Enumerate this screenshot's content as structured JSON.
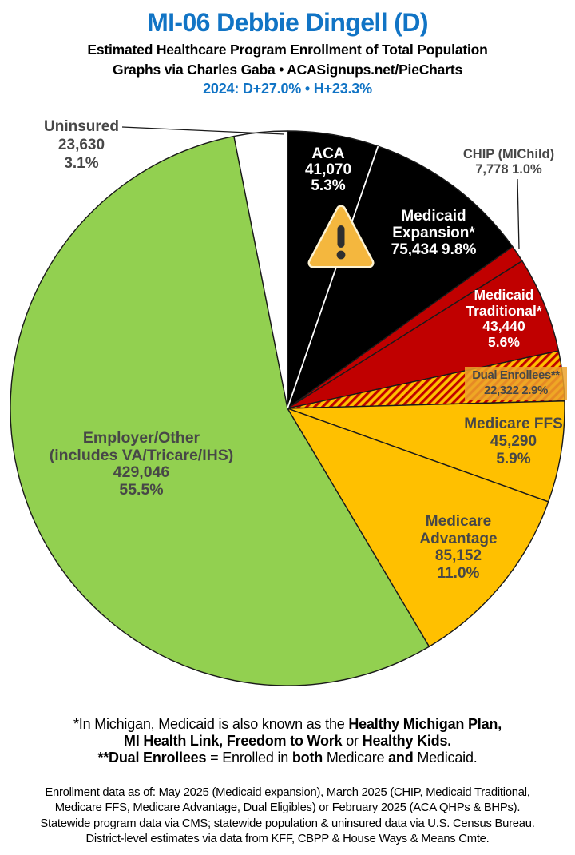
{
  "header": {
    "title": "MI-06 Debbie Dingell (D)",
    "subtitle": "Estimated Healthcare Program Enrollment of Total Population",
    "credit": "Graphs via Charles Gaba   •   ACASignups.net/PieCharts",
    "politics": "2024: D+27.0%  •  H+23.3%"
  },
  "colors": {
    "title_blue": "#1174c5",
    "label_gray": "#474747",
    "pie_black": "#000000",
    "pie_red": "#c00000",
    "pie_gold": "#ffc000",
    "pie_green": "#92d050",
    "pie_white": "#ffffff",
    "slice_stroke": "#1a1a1a",
    "dual_box": "rgba(236,162,44,0.85)",
    "warning_fill": "#f4b73e",
    "warning_halo": "#fdf3d2",
    "warning_glyph": "#2f2f2f"
  },
  "chart_data": {
    "type": "pie",
    "title": "Estimated Healthcare Program Enrollment of Total Population",
    "start_angle_deg": 0,
    "direction": "clockwise",
    "total_pct": 100.1,
    "legend_position": "labels-on-slices",
    "slices": [
      {
        "id": "aca",
        "label": "ACA",
        "enrollment": "41,070",
        "pct": 5.3,
        "fill": "#000000"
      },
      {
        "id": "medicaid-expansion",
        "label": "Medicaid Expansion*",
        "enrollment": "75,434",
        "pct": 9.8,
        "fill": "#000000"
      },
      {
        "id": "chip",
        "label": "CHIP (MIChild)",
        "enrollment": "7,778",
        "pct": 1.0,
        "fill": "#c00000"
      },
      {
        "id": "medicaid-traditional",
        "label": "Medicaid Traditional*",
        "enrollment": "43,440",
        "pct": 5.6,
        "fill": "#c00000"
      },
      {
        "id": "dual-enrollees",
        "label": "Dual Enrollees**",
        "enrollment": "22,322",
        "pct": 2.9,
        "fill": "hatch"
      },
      {
        "id": "medicare-ffs",
        "label": "Medicare FFS",
        "enrollment": "45,290",
        "pct": 5.9,
        "fill": "#ffc000"
      },
      {
        "id": "medicare-advantage",
        "label": "Medicare Advantage",
        "enrollment": "85,152",
        "pct": 11.0,
        "fill": "#ffc000"
      },
      {
        "id": "employer-other",
        "label": "Employer/Other (includes VA/Tricare/IHS)",
        "enrollment": "429,046",
        "pct": 55.5,
        "fill": "#92d050"
      },
      {
        "id": "uninsured",
        "label": "Uninsured",
        "enrollment": "23,630",
        "pct": 3.1,
        "fill": "#ffffff"
      }
    ],
    "white_divider_after_slice": "aca"
  },
  "slice_labels": {
    "uninsured": [
      "Uninsured",
      "23,630",
      "3.1%"
    ],
    "aca": [
      "ACA",
      "41,070",
      "5.3%"
    ],
    "expansion": [
      "Medicaid",
      "Expansion*",
      "75,434 9.8%"
    ],
    "chip": [
      "CHIP (MIChild)",
      "7,778 1.0%"
    ],
    "traditional": [
      "Medicaid",
      "Traditional*",
      "43,440",
      "5.6%"
    ],
    "dual": [
      "Dual Enrollees**",
      "22,322 2.9%"
    ],
    "ffs": [
      "Medicare FFS",
      "45,290",
      "5.9%"
    ],
    "advantage": [
      "Medicare",
      "Advantage",
      "85,152",
      "11.0%"
    ],
    "employer": [
      "Employer/Other",
      "(includes VA/Tricare/IHS)",
      "429,046",
      "55.5%"
    ]
  },
  "footnotes": {
    "note1_lines": [
      [
        {
          "t": "*In Michigan, Medicaid is also known as the ",
          "b": false
        },
        {
          "t": "Healthy Michigan Plan,",
          "b": true
        }
      ],
      [
        {
          "t": "MI Health Link, Freedom to Work",
          "b": true
        },
        {
          "t": " or ",
          "b": false
        },
        {
          "t": "Healthy Kids.",
          "b": true
        }
      ],
      [
        {
          "t": "**Dual Enrollees",
          "b": true
        },
        {
          "t": " = Enrolled in ",
          "b": false
        },
        {
          "t": "both",
          "b": true
        },
        {
          "t": " Medicare ",
          "b": false
        },
        {
          "t": "and",
          "b": true
        },
        {
          "t": " Medicaid.",
          "b": false
        }
      ]
    ],
    "note2_lines": [
      "Enrollment data as of: May 2025 (Medicaid expansion), March 2025 (CHIP, Medicaid Traditional,",
      "Medicare FFS, Medicare Advantage, Dual Eligibles) or February 2025 (ACA QHPs & BHPs).",
      "Statewide program data via CMS; statewide population & uninsured data via U.S. Census Bureau.",
      "District-level estimates via data from KFF, CBPP & House Ways & Means Cmte."
    ]
  }
}
